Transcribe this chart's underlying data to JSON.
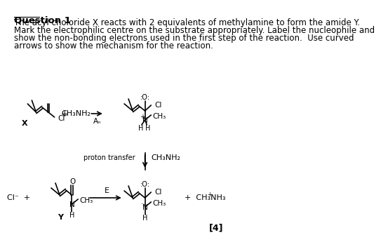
{
  "title": "Question 1",
  "body_text": "The acyl choloride X reacts with 2 equivalents of methylamine to form the amide Y.\nMark the electrophilic centre on the substrate appropriately. Label the nucleophile and\nshow the non-bonding electrons used in the first step of the reaction.  Use curved\narrows to show the mechanism for the reaction.",
  "bg_color": "#ffffff",
  "text_color": "#000000",
  "font_size_body": 8.5,
  "font_size_title": 9.5,
  "mark4": "[4]"
}
